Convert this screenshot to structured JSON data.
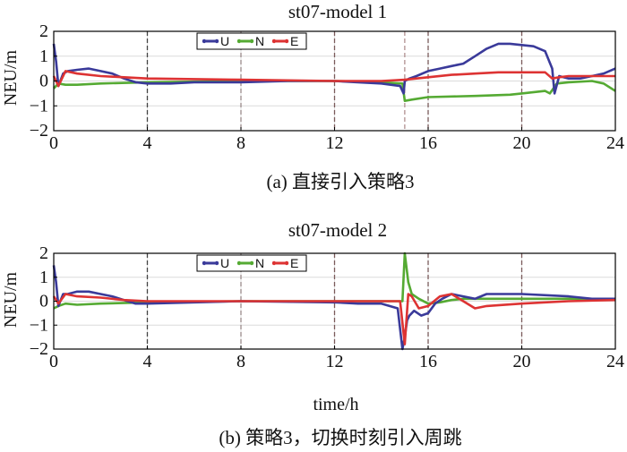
{
  "x_axis_label": "time/h",
  "chart_data": [
    {
      "type": "line",
      "title": "st07-model 1",
      "caption": "(a) 直接引入策略3",
      "xlabel": "",
      "ylabel": "NEU/m",
      "xlim": [
        0,
        24
      ],
      "ylim": [
        -2,
        2
      ],
      "xticks": [
        0,
        4,
        8,
        12,
        16,
        20,
        24
      ],
      "yticks": [
        -2,
        -1,
        0,
        1,
        2
      ],
      "grid": true,
      "legend_position": "top-left",
      "vlines": [
        {
          "x": 4,
          "color": "#444444"
        },
        {
          "x": 8,
          "color": "#9a8a8a"
        },
        {
          "x": 12,
          "color": "#7a5a5a"
        },
        {
          "x": 15,
          "color": "#b09090"
        },
        {
          "x": 16,
          "color": "#7a5a5a"
        },
        {
          "x": 20,
          "color": "#7a5a5a"
        }
      ],
      "series": [
        {
          "name": "U",
          "color": "#3a3a9a",
          "x": [
            0,
            0.1,
            0.2,
            0.4,
            0.6,
            1.0,
            1.5,
            2.0,
            2.5,
            3.0,
            3.5,
            4.0,
            5.0,
            6.0,
            8.0,
            10.0,
            12.0,
            13.0,
            14.0,
            14.8,
            14.95,
            15.0,
            15.2,
            15.5,
            16.0,
            16.5,
            17.0,
            17.5,
            18.0,
            18.5,
            19.0,
            19.5,
            20.0,
            20.5,
            21.0,
            21.3,
            21.4,
            21.6,
            22.0,
            22.5,
            23.0,
            23.5,
            24.0
          ],
          "y": [
            1.5,
            0.8,
            -0.2,
            0.3,
            0.4,
            0.45,
            0.5,
            0.4,
            0.3,
            0.1,
            -0.05,
            -0.1,
            -0.1,
            -0.05,
            -0.05,
            0.0,
            0.0,
            -0.05,
            -0.1,
            -0.2,
            -0.5,
            0.0,
            0.1,
            0.2,
            0.4,
            0.5,
            0.6,
            0.7,
            1.0,
            1.3,
            1.5,
            1.5,
            1.45,
            1.4,
            1.2,
            0.5,
            -0.5,
            0.2,
            0.1,
            0.1,
            0.2,
            0.3,
            0.5
          ]
        },
        {
          "name": "N",
          "color": "#55aa33",
          "x": [
            0,
            0.2,
            0.5,
            1.0,
            2.0,
            4.0,
            8.0,
            12.0,
            14.0,
            14.9,
            15.0,
            15.3,
            16.0,
            18.0,
            19.5,
            20.0,
            21.0,
            21.2,
            21.5,
            22.0,
            23.0,
            23.5,
            24.0
          ],
          "y": [
            -0.3,
            -0.1,
            -0.15,
            -0.15,
            -0.1,
            -0.05,
            0.0,
            0.0,
            -0.05,
            -0.1,
            -0.8,
            -0.75,
            -0.65,
            -0.6,
            -0.55,
            -0.5,
            -0.4,
            -0.5,
            -0.1,
            -0.05,
            0.0,
            -0.1,
            -0.4
          ]
        },
        {
          "name": "E",
          "color": "#dd3333",
          "x": [
            0,
            0.2,
            0.5,
            1.0,
            2.0,
            3.0,
            4.0,
            8.0,
            12.0,
            14.0,
            15.0,
            15.5,
            16.0,
            17.0,
            18.0,
            19.0,
            20.0,
            21.0,
            21.3,
            21.6,
            22.0,
            23.0,
            24.0
          ],
          "y": [
            0.2,
            -0.2,
            0.4,
            0.3,
            0.2,
            0.15,
            0.1,
            0.05,
            0.0,
            0.0,
            0.05,
            0.1,
            0.15,
            0.25,
            0.3,
            0.35,
            0.35,
            0.35,
            0.1,
            0.15,
            0.2,
            0.2,
            0.2
          ]
        }
      ]
    },
    {
      "type": "line",
      "title": "st07-model 2",
      "caption": "(b) 策略3，切换时刻引入周跳",
      "xlabel": "time/h",
      "ylabel": "NEU/m",
      "xlim": [
        0,
        24
      ],
      "ylim": [
        -2,
        2
      ],
      "xticks": [
        0,
        4,
        8,
        12,
        16,
        20,
        24
      ],
      "yticks": [
        -2,
        -1,
        0,
        1,
        2
      ],
      "grid": true,
      "legend_position": "top-left",
      "vlines": [
        {
          "x": 4,
          "color": "#444444"
        },
        {
          "x": 8,
          "color": "#9a8a8a"
        },
        {
          "x": 12,
          "color": "#7a5a5a"
        },
        {
          "x": 16,
          "color": "#7a5a5a"
        },
        {
          "x": 20,
          "color": "#7a5a5a"
        }
      ],
      "series": [
        {
          "name": "U",
          "color": "#3a3a9a",
          "x": [
            0,
            0.1,
            0.2,
            0.4,
            0.6,
            1.0,
            1.5,
            2.0,
            2.5,
            3.0,
            3.5,
            4.0,
            6.0,
            8.0,
            12.0,
            13.0,
            14.0,
            14.7,
            14.9,
            15.0,
            15.1,
            15.2,
            15.4,
            15.7,
            16.0,
            16.3,
            16.6,
            17.0,
            17.5,
            18.0,
            18.5,
            20.0,
            22.0,
            23.0,
            24.0
          ],
          "y": [
            1.5,
            0.8,
            -0.2,
            0.3,
            0.3,
            0.4,
            0.4,
            0.3,
            0.2,
            0.05,
            -0.1,
            -0.1,
            -0.05,
            0.0,
            -0.05,
            -0.1,
            -0.1,
            -0.3,
            -2.0,
            -1.5,
            -0.8,
            -0.6,
            -0.4,
            -0.6,
            -0.5,
            -0.1,
            0.1,
            0.3,
            0.2,
            0.1,
            0.3,
            0.3,
            0.2,
            0.1,
            0.1
          ]
        },
        {
          "name": "N",
          "color": "#55aa33",
          "x": [
            0,
            0.2,
            0.5,
            1.0,
            2.0,
            4.0,
            8.0,
            12.0,
            14.0,
            14.9,
            15.0,
            15.15,
            15.3,
            15.6,
            16.0,
            16.5,
            17.0,
            17.5,
            18.0,
            20.0,
            24.0
          ],
          "y": [
            -0.3,
            -0.2,
            -0.1,
            -0.15,
            -0.1,
            -0.05,
            0.0,
            0.0,
            0.0,
            0.0,
            2.0,
            0.8,
            0.3,
            0.1,
            -0.1,
            -0.05,
            0.05,
            0.1,
            0.1,
            0.1,
            0.1
          ]
        },
        {
          "name": "E",
          "color": "#dd3333",
          "x": [
            0,
            0.2,
            0.5,
            1.0,
            2.0,
            3.0,
            4.0,
            8.0,
            12.0,
            14.0,
            14.8,
            15.0,
            15.15,
            15.3,
            15.6,
            16.0,
            16.5,
            17.0,
            17.5,
            18.0,
            18.5,
            20.0,
            22.0,
            24.0
          ],
          "y": [
            0.2,
            -0.1,
            0.3,
            0.2,
            0.15,
            0.05,
            0.0,
            0.0,
            0.0,
            0.0,
            0.0,
            -1.8,
            0.3,
            0.2,
            -0.3,
            -0.2,
            0.2,
            0.3,
            0.0,
            -0.3,
            -0.2,
            -0.1,
            0.0,
            0.05
          ]
        }
      ]
    }
  ]
}
